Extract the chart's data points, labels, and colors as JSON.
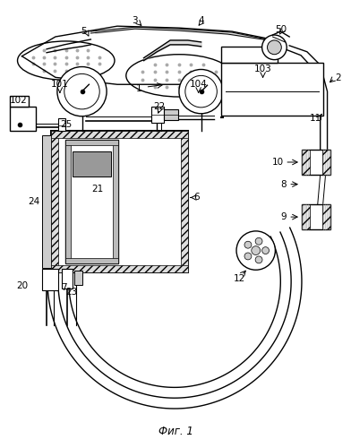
{
  "title": "Фиг. 1",
  "background_color": "#ffffff",
  "line_color": "#000000",
  "gray_color": "#aaaaaa",
  "light_gray": "#cccccc",
  "dark_gray": "#666666",
  "figsize": [
    3.92,
    5.0
  ],
  "dpi": 100
}
